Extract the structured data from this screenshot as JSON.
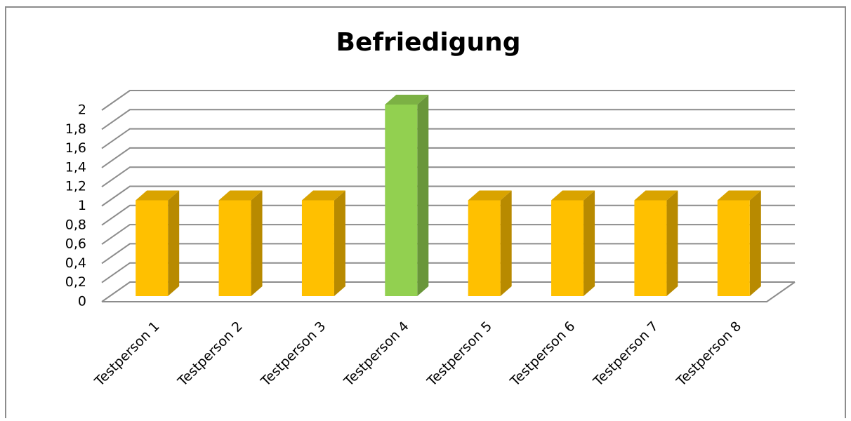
{
  "chart_data": {
    "type": "bar3d",
    "title": "Befriedigung",
    "categories": [
      "Testperson 1",
      "Testperson 2",
      "Testperson 3",
      "Testperson 4",
      "Testperson 5",
      "Testperson 6",
      "Testperson 7",
      "Testperson 8"
    ],
    "values": [
      1,
      1,
      1,
      2,
      1,
      1,
      1,
      1
    ],
    "colors": [
      "#ffc000",
      "#ffc000",
      "#ffc000",
      "#92d050",
      "#ffc000",
      "#ffc000",
      "#ffc000",
      "#ffc000"
    ],
    "ylim": [
      0,
      2
    ],
    "yticks": [
      0,
      {
        "value": 0.2,
        "label": "0,2"
      },
      {
        "value": 0.4,
        "label": "0,4"
      },
      {
        "value": 0.6,
        "label": "0,6"
      },
      {
        "value": 0.8,
        "label": "0,8"
      },
      1,
      {
        "value": 1.2,
        "label": "1,2"
      },
      {
        "value": 1.4,
        "label": "1,4"
      },
      {
        "value": 1.6,
        "label": "1,6"
      },
      {
        "value": 1.8,
        "label": "1,8"
      },
      2
    ],
    "grid": true
  }
}
